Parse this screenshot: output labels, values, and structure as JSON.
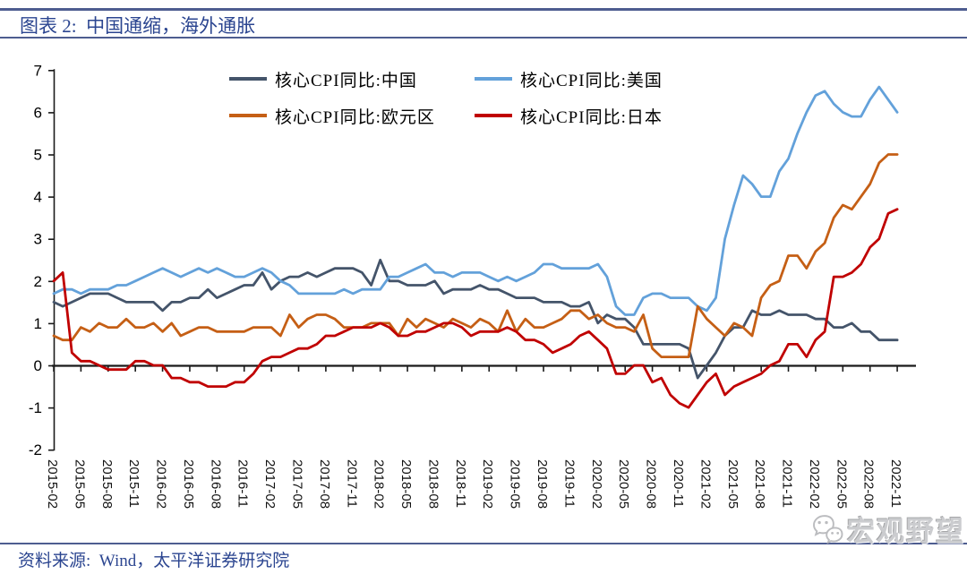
{
  "header": {
    "title": "图表 2:  中国通缩，海外通胀"
  },
  "footer": {
    "source": "资料来源:  Wind，太平洋证券研究院"
  },
  "watermark": {
    "icon": "wechat-icon",
    "label": "宏观野望"
  },
  "colors": {
    "accent_navy_text": "#2B4590",
    "rule_navy": "#4E5D90",
    "axis_black": "#1a1a1a",
    "watermark_gray": "#b0b1b4"
  },
  "chart_data": {
    "type": "line",
    "title": "中国通缩，海外通胀",
    "xlabel": "",
    "ylabel": "",
    "ylim": [
      -2,
      7
    ],
    "y_ticks": [
      7,
      6,
      5,
      4,
      3,
      2,
      1,
      0,
      -1,
      -2
    ],
    "x_tick_every": 3,
    "grid": false,
    "legend_position": "top-center",
    "x": [
      "2015-02",
      "2015-03",
      "2015-04",
      "2015-05",
      "2015-06",
      "2015-07",
      "2015-08",
      "2015-09",
      "2015-10",
      "2015-11",
      "2015-12",
      "2016-01",
      "2016-02",
      "2016-03",
      "2016-04",
      "2016-05",
      "2016-06",
      "2016-07",
      "2016-08",
      "2016-09",
      "2016-10",
      "2016-11",
      "2016-12",
      "2017-01",
      "2017-02",
      "2017-03",
      "2017-04",
      "2017-05",
      "2017-06",
      "2017-07",
      "2017-08",
      "2017-09",
      "2017-10",
      "2017-11",
      "2017-12",
      "2018-01",
      "2018-02",
      "2018-03",
      "2018-04",
      "2018-05",
      "2018-06",
      "2018-07",
      "2018-08",
      "2018-09",
      "2018-10",
      "2018-11",
      "2018-12",
      "2019-01",
      "2019-02",
      "2019-03",
      "2019-04",
      "2019-05",
      "2019-06",
      "2019-07",
      "2019-08",
      "2019-09",
      "2019-10",
      "2019-11",
      "2019-12",
      "2020-01",
      "2020-02",
      "2020-03",
      "2020-04",
      "2020-05",
      "2020-06",
      "2020-07",
      "2020-08",
      "2020-09",
      "2020-10",
      "2020-11",
      "2020-12",
      "2021-01",
      "2021-02",
      "2021-03",
      "2021-04",
      "2021-05",
      "2021-06",
      "2021-07",
      "2021-08",
      "2021-09",
      "2021-10",
      "2021-11",
      "2021-12",
      "2022-01",
      "2022-02",
      "2022-03",
      "2022-04",
      "2022-05",
      "2022-06",
      "2022-07",
      "2022-08",
      "2022-09",
      "2022-10",
      "2022-11"
    ],
    "series": [
      {
        "key": "china",
        "name": "核心CPI同比:中国",
        "color": "#44546A",
        "values": [
          1.5,
          1.4,
          1.5,
          1.6,
          1.7,
          1.7,
          1.7,
          1.6,
          1.5,
          1.5,
          1.5,
          1.5,
          1.3,
          1.5,
          1.5,
          1.6,
          1.6,
          1.8,
          1.6,
          1.7,
          1.8,
          1.9,
          1.9,
          2.2,
          1.8,
          2.0,
          2.1,
          2.1,
          2.2,
          2.1,
          2.2,
          2.3,
          2.3,
          2.3,
          2.2,
          1.9,
          2.5,
          2.0,
          2.0,
          1.9,
          1.9,
          1.9,
          2.0,
          1.7,
          1.8,
          1.8,
          1.8,
          1.9,
          1.8,
          1.8,
          1.7,
          1.6,
          1.6,
          1.6,
          1.5,
          1.5,
          1.5,
          1.4,
          1.4,
          1.5,
          1.0,
          1.2,
          1.1,
          1.1,
          0.9,
          0.5,
          0.5,
          0.5,
          0.5,
          0.5,
          0.4,
          -0.3,
          0.0,
          0.3,
          0.7,
          0.9,
          0.9,
          1.3,
          1.2,
          1.2,
          1.3,
          1.2,
          1.2,
          1.2,
          1.1,
          1.1,
          0.9,
          0.9,
          1.0,
          0.8,
          0.8,
          0.6,
          0.6,
          0.6
        ]
      },
      {
        "key": "us",
        "name": "核心CPI同比:美国",
        "color": "#63A1DA",
        "values": [
          1.7,
          1.8,
          1.8,
          1.7,
          1.8,
          1.8,
          1.8,
          1.9,
          1.9,
          2.0,
          2.1,
          2.2,
          2.3,
          2.2,
          2.1,
          2.2,
          2.3,
          2.2,
          2.3,
          2.2,
          2.1,
          2.1,
          2.2,
          2.3,
          2.2,
          2.0,
          1.9,
          1.7,
          1.7,
          1.7,
          1.7,
          1.7,
          1.8,
          1.7,
          1.8,
          1.8,
          1.8,
          2.1,
          2.1,
          2.2,
          2.3,
          2.4,
          2.2,
          2.2,
          2.1,
          2.2,
          2.2,
          2.2,
          2.1,
          2.0,
          2.1,
          2.0,
          2.1,
          2.2,
          2.4,
          2.4,
          2.3,
          2.3,
          2.3,
          2.3,
          2.4,
          2.1,
          1.4,
          1.2,
          1.2,
          1.6,
          1.7,
          1.7,
          1.6,
          1.6,
          1.6,
          1.4,
          1.3,
          1.6,
          3.0,
          3.8,
          4.5,
          4.3,
          4.0,
          4.0,
          4.6,
          4.9,
          5.5,
          6.0,
          6.4,
          6.5,
          6.2,
          6.0,
          5.9,
          5.9,
          6.3,
          6.6,
          6.3,
          6.0
        ]
      },
      {
        "key": "eurozone",
        "name": "核心CPI同比:欧元区",
        "color": "#C55F15",
        "values": [
          0.7,
          0.6,
          0.6,
          0.9,
          0.8,
          1.0,
          0.9,
          0.9,
          1.1,
          0.9,
          0.9,
          1.0,
          0.8,
          1.0,
          0.7,
          0.8,
          0.9,
          0.9,
          0.8,
          0.8,
          0.8,
          0.8,
          0.9,
          0.9,
          0.9,
          0.7,
          1.2,
          0.9,
          1.1,
          1.2,
          1.2,
          1.1,
          0.9,
          0.9,
          0.9,
          1.0,
          1.0,
          1.0,
          0.7,
          1.1,
          0.9,
          1.1,
          1.0,
          0.9,
          1.1,
          1.0,
          0.9,
          1.1,
          1.0,
          0.8,
          1.3,
          0.8,
          1.1,
          0.9,
          0.9,
          1.0,
          1.1,
          1.3,
          1.3,
          1.1,
          1.2,
          1.0,
          0.9,
          0.9,
          0.8,
          1.2,
          0.4,
          0.2,
          0.2,
          0.2,
          0.2,
          1.4,
          1.1,
          0.9,
          0.7,
          1.0,
          0.9,
          0.7,
          1.6,
          1.9,
          2.0,
          2.6,
          2.6,
          2.3,
          2.7,
          2.9,
          3.5,
          3.8,
          3.7,
          4.0,
          4.3,
          4.8,
          5.0,
          5.0
        ]
      },
      {
        "key": "japan",
        "name": "核心CPI同比:日本",
        "color": "#C00000",
        "values": [
          2.0,
          2.2,
          0.3,
          0.1,
          0.1,
          0.0,
          -0.1,
          -0.1,
          -0.1,
          0.1,
          0.1,
          0.0,
          0.0,
          -0.3,
          -0.3,
          -0.4,
          -0.4,
          -0.5,
          -0.5,
          -0.5,
          -0.4,
          -0.4,
          -0.2,
          0.1,
          0.2,
          0.2,
          0.3,
          0.4,
          0.4,
          0.5,
          0.7,
          0.7,
          0.8,
          0.9,
          0.9,
          0.9,
          1.0,
          0.9,
          0.7,
          0.7,
          0.8,
          0.8,
          0.9,
          1.0,
          1.0,
          0.9,
          0.7,
          0.8,
          0.8,
          0.8,
          0.9,
          0.8,
          0.6,
          0.6,
          0.5,
          0.3,
          0.4,
          0.5,
          0.7,
          0.8,
          0.6,
          0.4,
          -0.2,
          -0.2,
          0.0,
          0.0,
          -0.4,
          -0.3,
          -0.7,
          -0.9,
          -1.0,
          -0.7,
          -0.4,
          -0.2,
          -0.7,
          -0.5,
          -0.4,
          -0.3,
          -0.2,
          0.0,
          0.1,
          0.5,
          0.5,
          0.2,
          0.6,
          0.8,
          2.1,
          2.1,
          2.2,
          2.4,
          2.8,
          3.0,
          3.6,
          3.7
        ]
      }
    ]
  }
}
